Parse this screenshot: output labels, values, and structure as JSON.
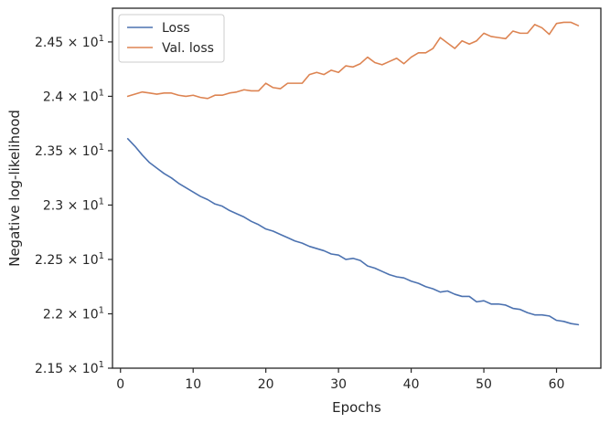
{
  "chart_data": {
    "type": "line",
    "xlabel": "Epochs",
    "ylabel": "Negative log-likelihood",
    "xlim": [
      -1.1,
      66.1
    ],
    "ylim": [
      21.5,
      24.81
    ],
    "x_ticks": [
      0,
      10,
      20,
      30,
      40,
      50,
      60
    ],
    "y_ticks": [
      {
        "value": 21.5,
        "mantissa": "2.15",
        "base": "10",
        "exp": "1"
      },
      {
        "value": 22.0,
        "mantissa": "2.2",
        "base": "10",
        "exp": "1"
      },
      {
        "value": 22.5,
        "mantissa": "2.25",
        "base": "10",
        "exp": "1"
      },
      {
        "value": 23.0,
        "mantissa": "2.3",
        "base": "10",
        "exp": "1"
      },
      {
        "value": 23.5,
        "mantissa": "2.35",
        "base": "10",
        "exp": "1"
      },
      {
        "value": 24.0,
        "mantissa": "2.4",
        "base": "10",
        "exp": "1"
      },
      {
        "value": 24.5,
        "mantissa": "2.45",
        "base": "10",
        "exp": "1"
      }
    ],
    "grid": false,
    "legend": {
      "position": "top-left"
    },
    "x": [
      1,
      2,
      3,
      4,
      5,
      6,
      7,
      8,
      9,
      10,
      11,
      12,
      13,
      14,
      15,
      16,
      17,
      18,
      19,
      20,
      21,
      22,
      23,
      24,
      25,
      26,
      27,
      28,
      29,
      30,
      31,
      32,
      33,
      34,
      35,
      36,
      37,
      38,
      39,
      40,
      41,
      42,
      43,
      44,
      45,
      46,
      47,
      48,
      49,
      50,
      51,
      52,
      53,
      54,
      55,
      56,
      57,
      58,
      59,
      60,
      61,
      62,
      63
    ],
    "series": [
      {
        "name": "Loss",
        "color": "#4c72b0",
        "values": [
          23.61,
          23.54,
          23.46,
          23.39,
          23.34,
          23.29,
          23.25,
          23.2,
          23.16,
          23.12,
          23.08,
          23.05,
          23.01,
          22.99,
          22.95,
          22.92,
          22.89,
          22.85,
          22.82,
          22.78,
          22.76,
          22.73,
          22.7,
          22.67,
          22.65,
          22.62,
          22.6,
          22.58,
          22.55,
          22.54,
          22.5,
          22.51,
          22.49,
          22.44,
          22.42,
          22.39,
          22.36,
          22.34,
          22.33,
          22.3,
          22.28,
          22.25,
          22.23,
          22.2,
          22.21,
          22.18,
          22.16,
          22.16,
          22.11,
          22.12,
          22.09,
          22.09,
          22.08,
          22.05,
          22.04,
          22.01,
          21.99,
          21.99,
          21.98,
          21.94,
          21.93,
          21.91,
          21.9
        ]
      },
      {
        "name": "Val. loss",
        "color": "#dd8452",
        "values": [
          24.0,
          24.02,
          24.04,
          24.03,
          24.02,
          24.03,
          24.03,
          24.01,
          24.0,
          24.01,
          23.99,
          23.98,
          24.01,
          24.01,
          24.03,
          24.04,
          24.06,
          24.05,
          24.05,
          24.12,
          24.08,
          24.07,
          24.12,
          24.12,
          24.12,
          24.2,
          24.22,
          24.2,
          24.24,
          24.22,
          24.28,
          24.27,
          24.3,
          24.36,
          24.31,
          24.29,
          24.32,
          24.35,
          24.3,
          24.36,
          24.4,
          24.4,
          24.44,
          24.54,
          24.49,
          24.44,
          24.51,
          24.48,
          24.51,
          24.58,
          24.55,
          24.54,
          24.53,
          24.6,
          24.58,
          24.58,
          24.66,
          24.63,
          24.57,
          24.67,
          24.68,
          24.68,
          24.65
        ]
      }
    ]
  }
}
